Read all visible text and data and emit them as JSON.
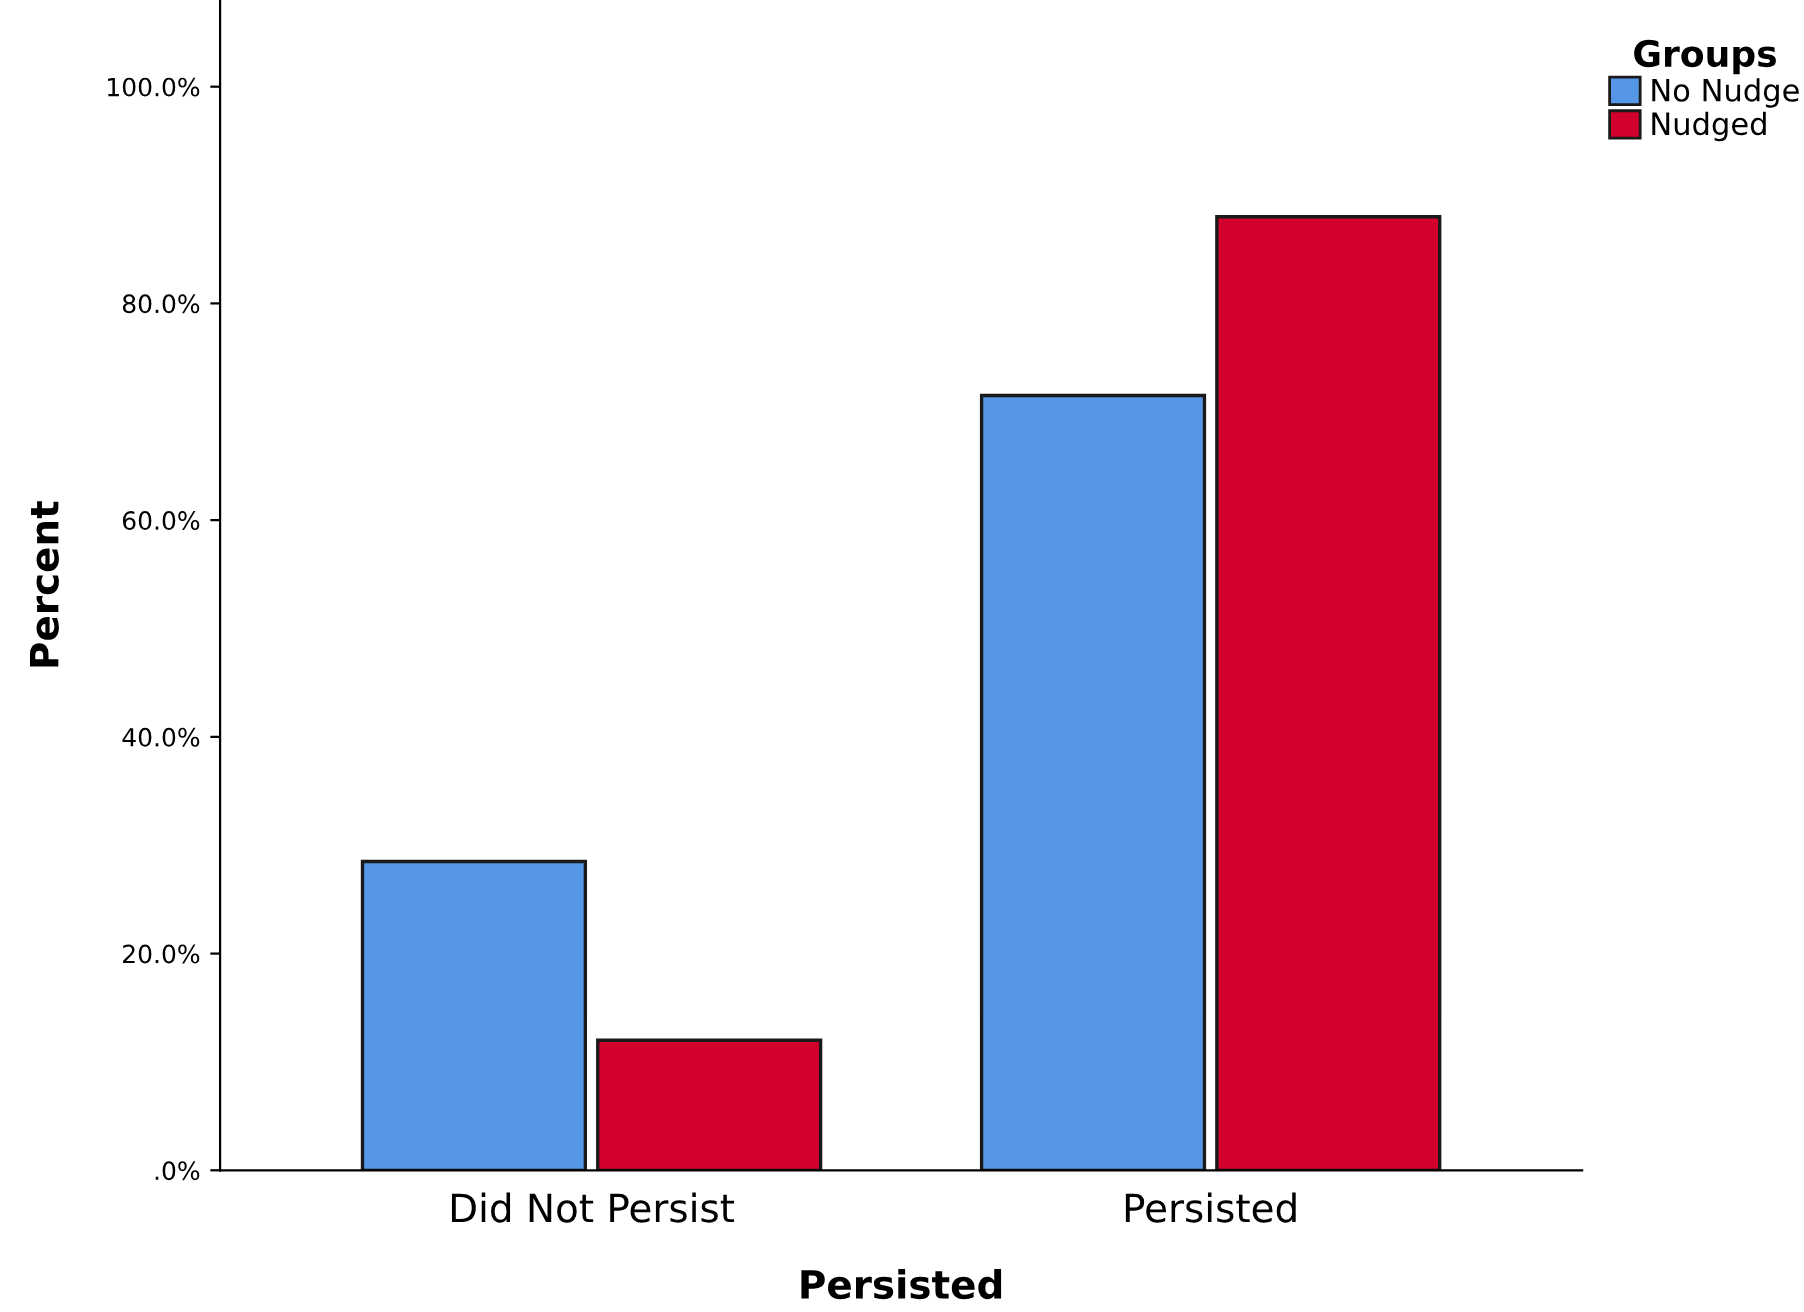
{
  "chart_data": {
    "type": "bar",
    "xlabel": "Persisted",
    "ylabel": "Percent",
    "legend_title": "Groups",
    "categories": [
      "Did Not Persist",
      "Persisted"
    ],
    "series": [
      {
        "name": "No Nudge",
        "color": "#5596e6",
        "values": [
          28.5,
          71.5
        ]
      },
      {
        "name": "Nudged",
        "color": "#d2002d",
        "values": [
          12.0,
          88.0
        ]
      }
    ],
    "ylim": [
      0,
      108
    ],
    "yticks": [
      {
        "value": 0,
        "label": ".0%"
      },
      {
        "value": 20,
        "label": "20.0%"
      },
      {
        "value": 40,
        "label": "40.0%"
      },
      {
        "value": 60,
        "label": "60.0%"
      },
      {
        "value": 80,
        "label": "80.0%"
      },
      {
        "value": 100,
        "label": "100.0%"
      }
    ],
    "grid": false,
    "legend": "top right"
  }
}
